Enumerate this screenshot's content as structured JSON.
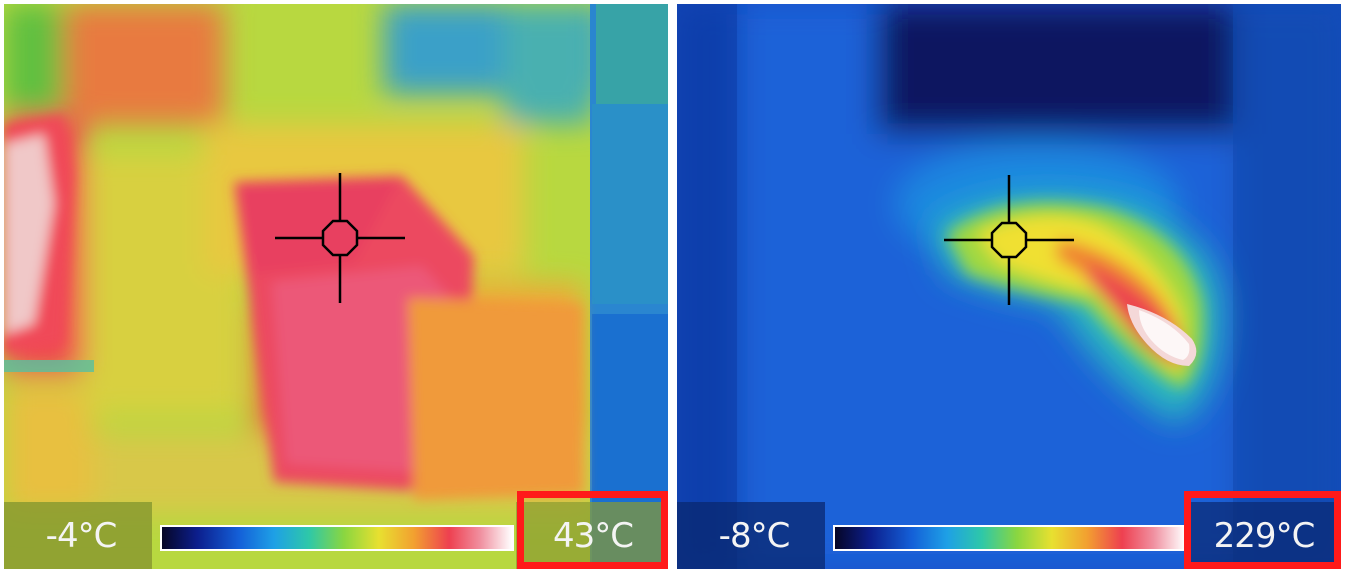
{
  "left_panel": {
    "min_temp": "-4°C",
    "max_temp": "43°C",
    "crosshair_icon": "crosshair-icon"
  },
  "right_panel": {
    "min_temp": "-8°C",
    "max_temp": "229°C",
    "crosshair_icon": "crosshair-icon"
  },
  "colors": {
    "highlight": "#ff1a1a",
    "label_text": "#f4f4f4"
  }
}
